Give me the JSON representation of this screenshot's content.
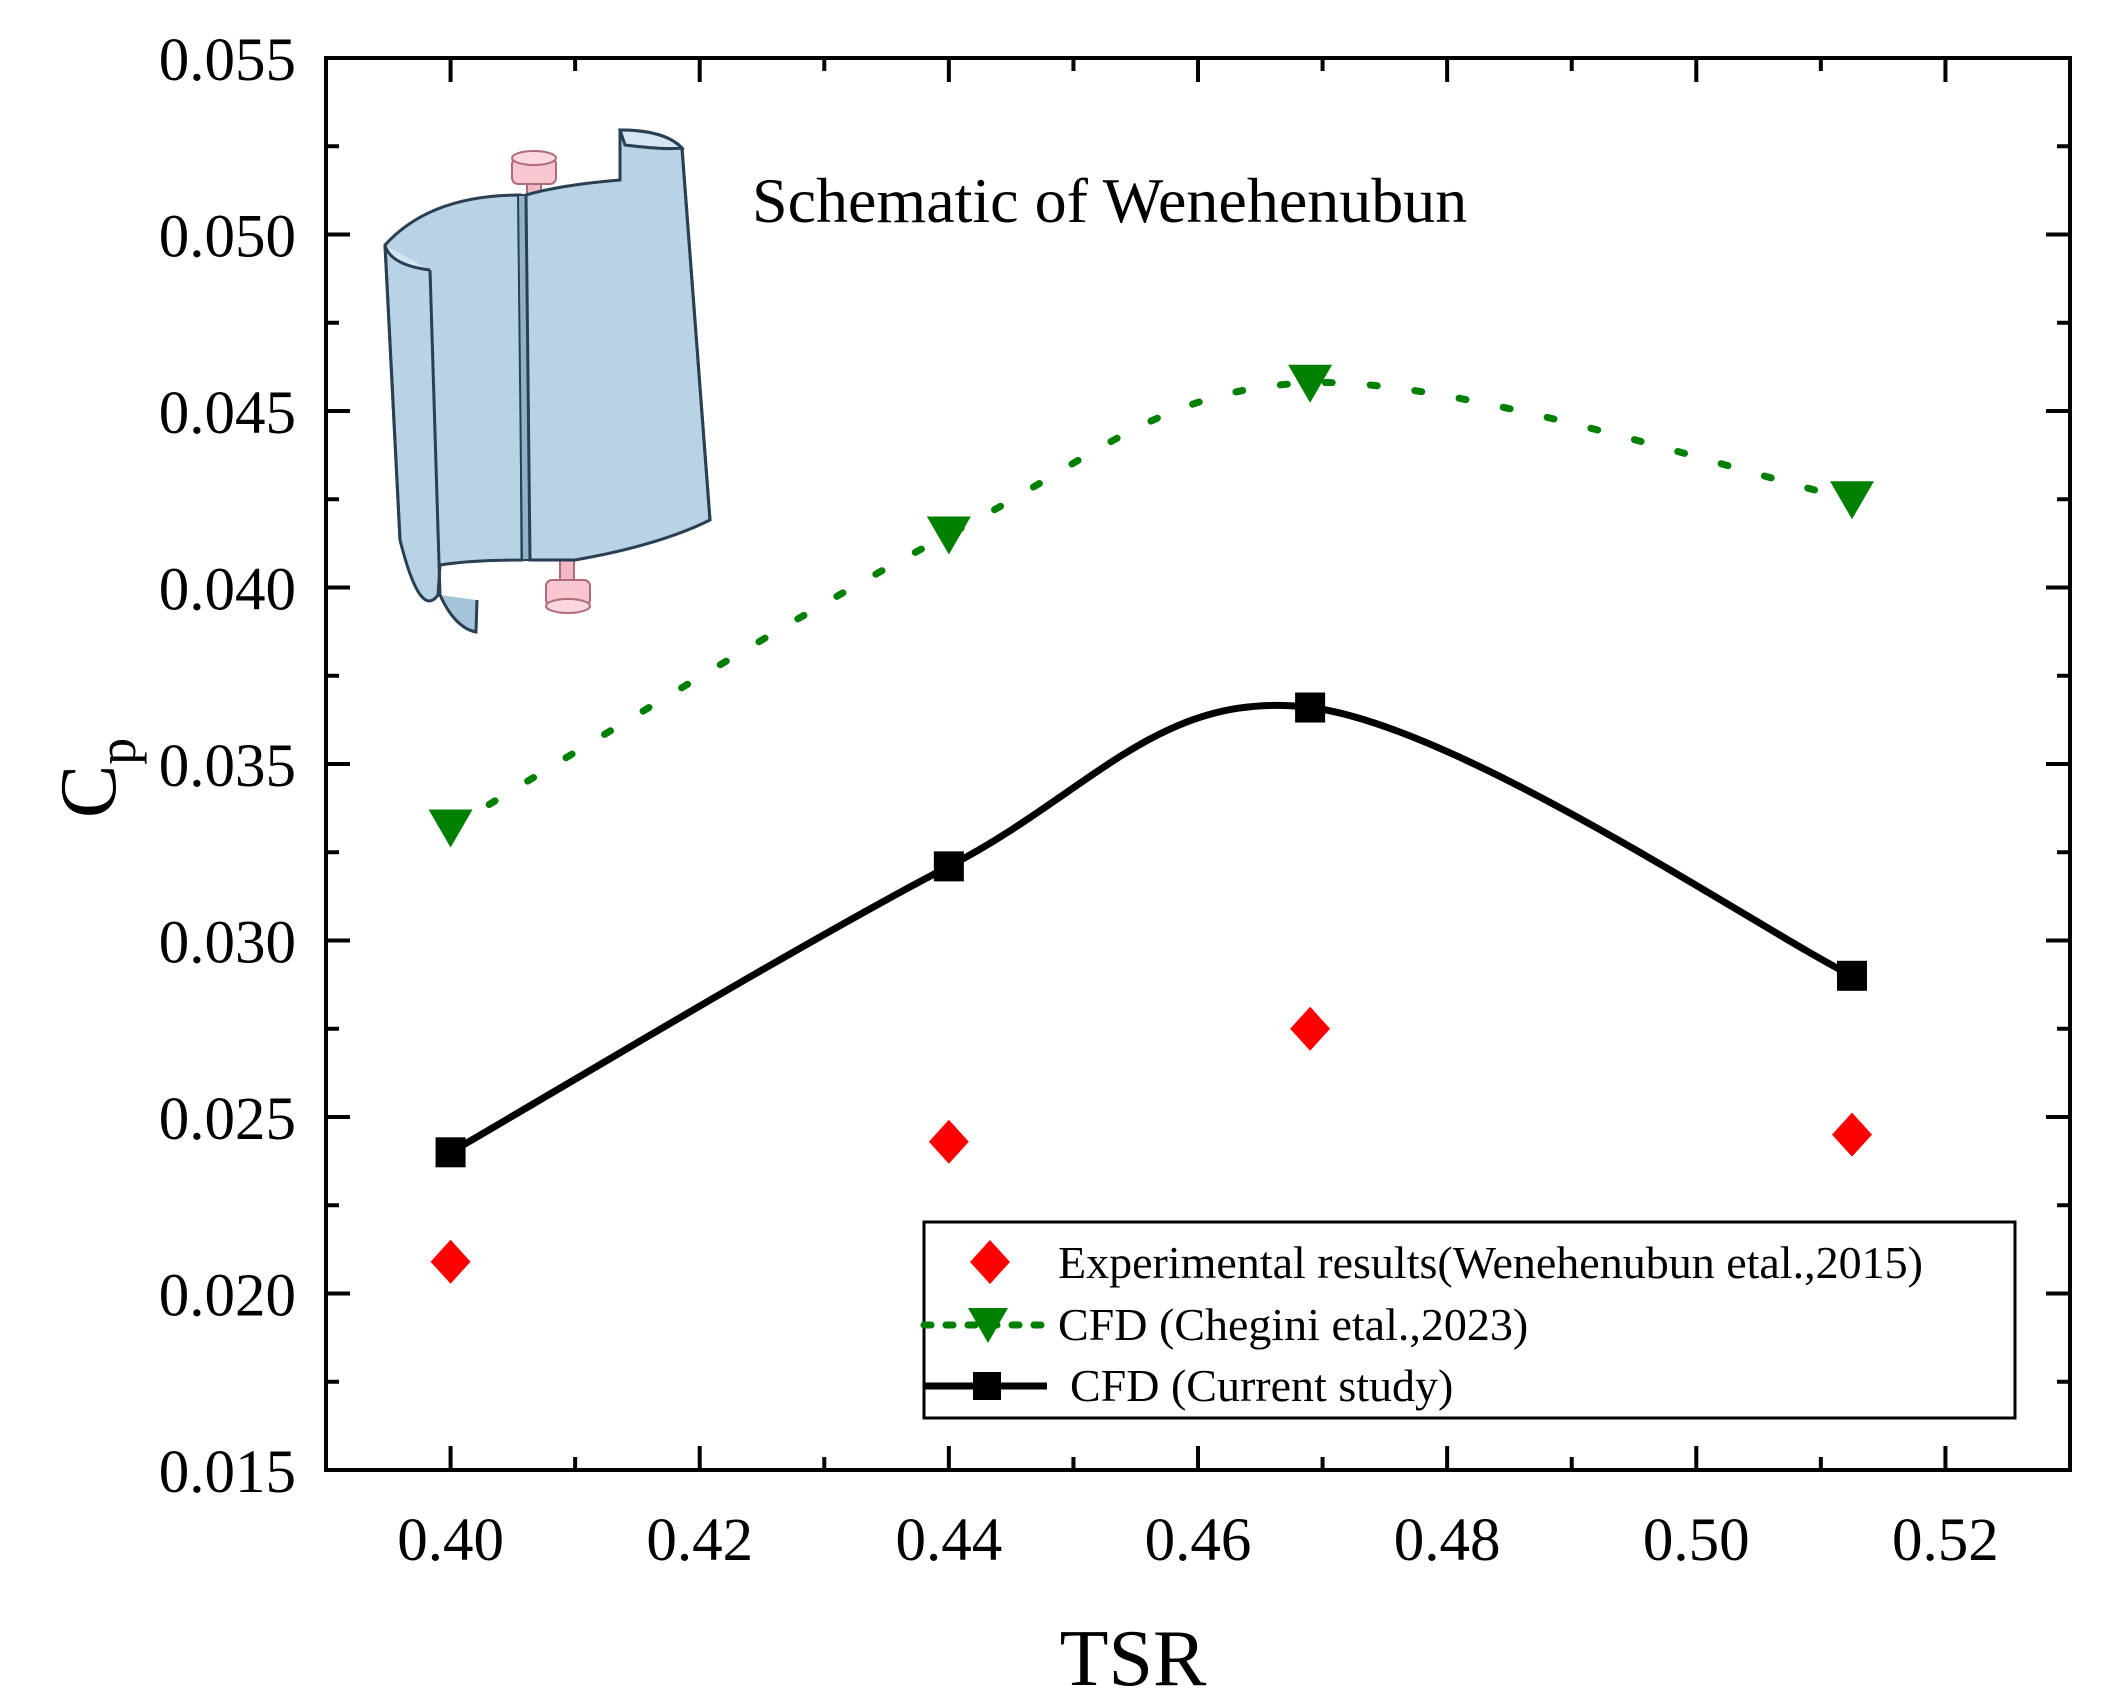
{
  "chart_data": {
    "type": "line",
    "title": "",
    "xlabel": "TSR",
    "ylabel": "C",
    "ylabel_subscript": "p",
    "xlim": [
      0.39,
      0.53
    ],
    "ylim": [
      0.015,
      0.055
    ],
    "xticks": [
      0.4,
      0.42,
      0.44,
      0.46,
      0.48,
      0.5,
      0.52
    ],
    "xtick_labels": [
      "0.40",
      "0.42",
      "0.44",
      "0.46",
      "0.48",
      "0.50",
      "0.52"
    ],
    "yticks": [
      0.015,
      0.02,
      0.025,
      0.03,
      0.035,
      0.04,
      0.045,
      0.05,
      0.055
    ],
    "ytick_labels": [
      "0.015",
      "0.020",
      "0.025",
      "0.030",
      "0.035",
      "0.040",
      "0.045",
      "0.050",
      "0.055"
    ],
    "annotation": "Schematic of Wenehenubun",
    "legend_position": "bottom-right",
    "series": [
      {
        "name": "Experimental results(Wenehenubun etal.,2015)",
        "marker": "diamond",
        "line": "none",
        "color": "#ff0000",
        "x": [
          0.4,
          0.44,
          0.469,
          0.5125
        ],
        "y": [
          0.0209,
          0.0243,
          0.0275,
          0.0245
        ]
      },
      {
        "name": "CFD (Chegini etal.,2023)",
        "marker": "triangle-down",
        "line": "dotted",
        "color": "#008000",
        "x": [
          0.4,
          0.44,
          0.469,
          0.5125
        ],
        "y": [
          0.0332,
          0.0415,
          0.0458,
          0.0425
        ]
      },
      {
        "name": "CFD (Current study)",
        "marker": "square",
        "line": "solid",
        "color": "#000000",
        "x": [
          0.4,
          0.44,
          0.469,
          0.5125
        ],
        "y": [
          0.024,
          0.0321,
          0.0366,
          0.029
        ]
      }
    ]
  }
}
